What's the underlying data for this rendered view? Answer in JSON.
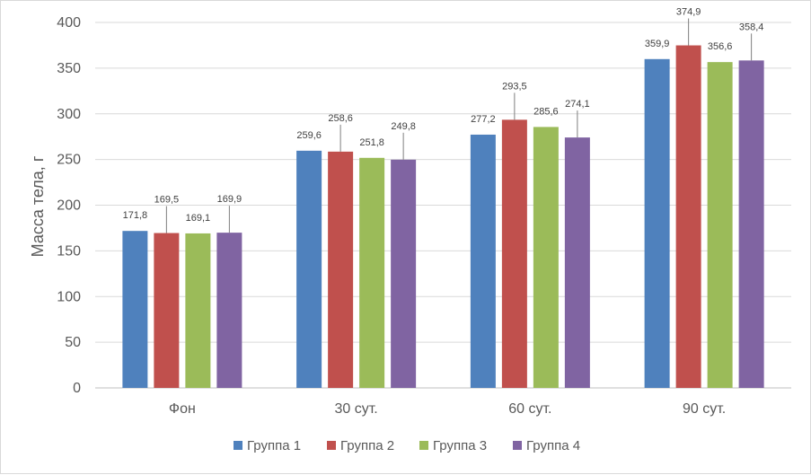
{
  "chart_data": {
    "type": "bar",
    "title": "",
    "xlabel": "",
    "ylabel": "Масса тела, г",
    "ylim": [
      0,
      400
    ],
    "yticks": [
      0,
      50,
      100,
      150,
      200,
      250,
      300,
      350,
      400
    ],
    "grid": true,
    "legend_position": "bottom",
    "categories": [
      "Фон",
      "30 сут.",
      "60 сут.",
      "90 сут."
    ],
    "series": [
      {
        "name": "Группа 1",
        "color": "#4f81bd",
        "values": [
          171.8,
          259.6,
          277.2,
          359.9
        ],
        "labels": [
          "171,8",
          "259,6",
          "277,2",
          "359,9"
        ]
      },
      {
        "name": "Группа 2",
        "color": "#c0504d",
        "values": [
          169.5,
          258.6,
          293.5,
          374.9
        ],
        "labels": [
          "169,5",
          "258,6",
          "293,5",
          "374,9"
        ]
      },
      {
        "name": "Группа 3",
        "color": "#9bbb59",
        "values": [
          169.1,
          251.8,
          285.6,
          356.6
        ],
        "labels": [
          "169,1",
          "251,8",
          "285,6",
          "356,6"
        ]
      },
      {
        "name": "Группа 4",
        "color": "#8064a2",
        "values": [
          169.9,
          249.8,
          274.1,
          358.4
        ],
        "labels": [
          "169,9",
          "249,8",
          "274,1",
          "358,4"
        ]
      }
    ]
  }
}
